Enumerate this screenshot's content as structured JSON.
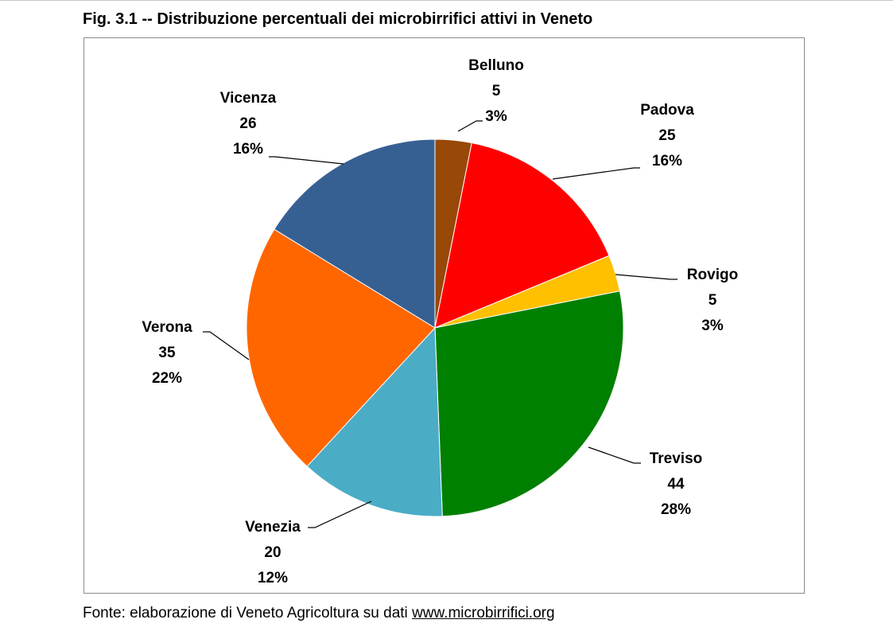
{
  "figure": {
    "title": "Fig. 3.1 -- Distribuzione percentuali dei microbirrifici attivi in Veneto",
    "source_prefix": "Fonte: elaborazione di Veneto Agricoltura su dati ",
    "source_link": "www.microbirrifici.org"
  },
  "chart_data": {
    "type": "pie",
    "title": "Fig. 3.1 -- Distribuzione percentuali dei microbirrifici attivi in Veneto",
    "slices": [
      {
        "label": "Belluno",
        "value": 5,
        "percent": "3%",
        "color": "#984807"
      },
      {
        "label": "Padova",
        "value": 25,
        "percent": "16%",
        "color": "#ff0000"
      },
      {
        "label": "Rovigo",
        "value": 5,
        "percent": "3%",
        "color": "#ffc000"
      },
      {
        "label": "Treviso",
        "value": 44,
        "percent": "28%",
        "color": "#008000"
      },
      {
        "label": "Venezia",
        "value": 20,
        "percent": "12%",
        "color": "#4bacc6"
      },
      {
        "label": "Verona",
        "value": 35,
        "percent": "22%",
        "color": "#ff6600"
      },
      {
        "label": "Vicenza",
        "value": 26,
        "percent": "16%",
        "color": "#376092"
      }
    ],
    "start_angle": "12 o'clock",
    "direction": "clockwise",
    "labels": "outside with leader lines",
    "legend": "none"
  }
}
